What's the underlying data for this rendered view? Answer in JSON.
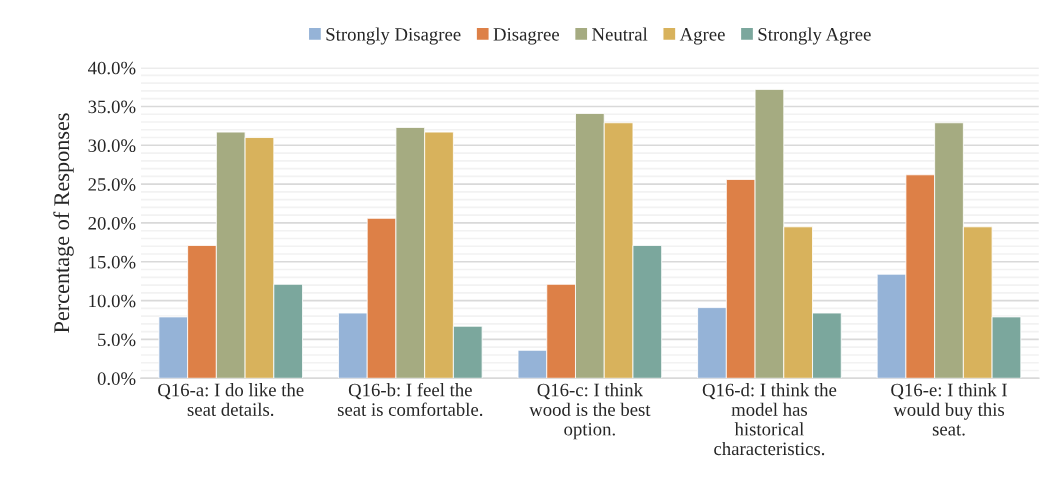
{
  "chart_data": {
    "type": "bar",
    "ylabel": "Percentage of Responses",
    "categories": [
      "Q16-a: I do like the\nseat details.",
      "Q16-b: I feel the\nseat is comfortable.",
      "Q16-c: I think\nwood is the best\noption.",
      "Q16-d: I think the\nmodel has\nhistorical\ncharacteristics.",
      "Q16-e: I think I\nwould buy this\nseat."
    ],
    "series": [
      {
        "name": "Strongly Disagree",
        "color": "#95b3d7",
        "values": [
          7.9,
          8.4,
          3.6,
          9.1,
          13.4
        ]
      },
      {
        "name": "Disagree",
        "color": "#dd8047",
        "values": [
          17.1,
          20.6,
          12.1,
          25.6,
          26.2
        ]
      },
      {
        "name": "Neutral",
        "color": "#a5ab81",
        "values": [
          31.7,
          32.3,
          34.1,
          37.2,
          32.9
        ]
      },
      {
        "name": "Agree",
        "color": "#d8b25c",
        "values": [
          31.0,
          31.7,
          32.9,
          19.5,
          19.5
        ]
      },
      {
        "name": "Strongly Agree",
        "color": "#7ba79d",
        "values": [
          12.1,
          6.7,
          17.1,
          8.4,
          7.9
        ]
      }
    ],
    "ylim": [
      0,
      40
    ],
    "yticks": [
      {
        "value": 0,
        "label": "0.0%"
      },
      {
        "value": 1,
        "label": null
      },
      {
        "value": 2,
        "label": null
      },
      {
        "value": 3,
        "label": null
      },
      {
        "value": 4,
        "label": null
      },
      {
        "value": 5,
        "label": "5.0%"
      },
      {
        "value": 6,
        "label": null
      },
      {
        "value": 7,
        "label": null
      },
      {
        "value": 8,
        "label": null
      },
      {
        "value": 9,
        "label": null
      },
      {
        "value": 10,
        "label": "10.0%"
      },
      {
        "value": 11,
        "label": null
      },
      {
        "value": 12,
        "label": null
      },
      {
        "value": 13,
        "label": null
      },
      {
        "value": 14,
        "label": null
      },
      {
        "value": 15,
        "label": "15.0%"
      },
      {
        "value": 16,
        "label": null
      },
      {
        "value": 17,
        "label": null
      },
      {
        "value": 18,
        "label": null
      },
      {
        "value": 19,
        "label": null
      },
      {
        "value": 20,
        "label": "20.0%"
      },
      {
        "value": 21,
        "label": null
      },
      {
        "value": 22,
        "label": null
      },
      {
        "value": 23,
        "label": null
      },
      {
        "value": 24,
        "label": null
      },
      {
        "value": 25,
        "label": "25.0%"
      },
      {
        "value": 26,
        "label": null
      },
      {
        "value": 27,
        "label": null
      },
      {
        "value": 28,
        "label": null
      },
      {
        "value": 29,
        "label": null
      },
      {
        "value": 30,
        "label": "30.0%"
      },
      {
        "value": 31,
        "label": null
      },
      {
        "value": 32,
        "label": null
      },
      {
        "value": 33,
        "label": null
      },
      {
        "value": 34,
        "label": null
      },
      {
        "value": 35,
        "label": "35.0%"
      },
      {
        "value": 36,
        "label": null
      },
      {
        "value": 37,
        "label": null
      },
      {
        "value": 38,
        "label": null
      },
      {
        "value": 39,
        "label": null
      },
      {
        "value": 40,
        "label": "40.0%"
      }
    ],
    "grid": "y",
    "legend": "top"
  }
}
